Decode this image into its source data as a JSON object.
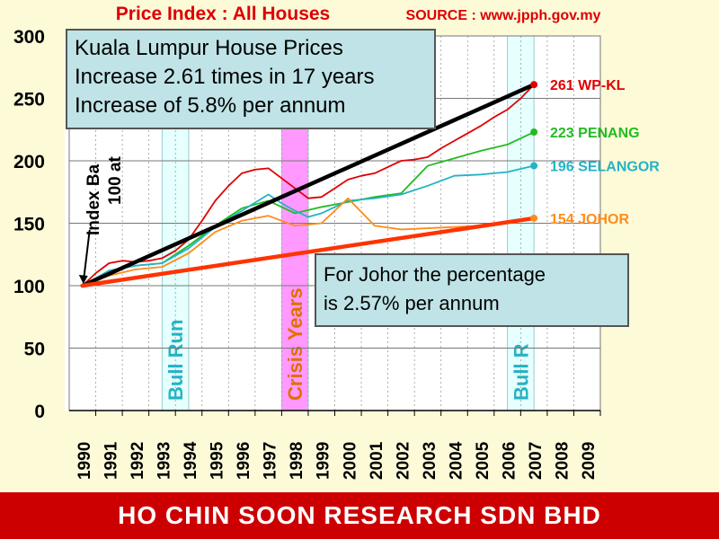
{
  "chart_data": {
    "type": "line",
    "title": "Price Index : All Houses",
    "source": "SOURCE : www.jpph.gov.my",
    "x_categories": [
      "1990",
      "1991",
      "1992",
      "1993",
      "1994",
      "1995",
      "1996",
      "1997",
      "1998",
      "1999",
      "2000",
      "2001",
      "2002",
      "2003",
      "2004",
      "2005",
      "2006",
      "2007",
      "2008",
      "2009"
    ],
    "ylim": [
      0,
      300
    ],
    "yticks": [
      0,
      50,
      100,
      150,
      200,
      250,
      300
    ],
    "grid": true,
    "series": [
      {
        "name": "WP-KL",
        "label": "261 WP-KL",
        "color": "#e00000",
        "x": [
          1990,
          1990.5,
          1991,
          1991.5,
          1992,
          1992.5,
          1993,
          1993.5,
          1994,
          1994.5,
          1995,
          1995.5,
          1996,
          1996.5,
          1997,
          1997.5,
          1998,
          1998.5,
          1999,
          1999.5,
          2000,
          2000.5,
          2001,
          2001.5,
          2002,
          2002.5,
          2003,
          2003.5,
          2004,
          2004.5,
          2005,
          2005.5,
          2006,
          2006.5,
          2007
        ],
        "y": [
          100,
          110,
          118,
          120,
          119,
          120,
          122,
          128,
          137,
          152,
          168,
          180,
          190,
          193,
          194,
          186,
          178,
          170,
          171,
          178,
          185,
          188,
          190,
          195,
          200,
          201,
          203,
          210,
          216,
          222,
          228,
          235,
          241,
          250,
          261
        ]
      },
      {
        "name": "PENANG",
        "label": "223 PENANG",
        "color": "#22bb22",
        "x": [
          1990,
          1991,
          1992,
          1993,
          1994,
          1995,
          1996,
          1997,
          1998,
          1999,
          2000,
          2001,
          2002,
          2003,
          2004,
          2005,
          2006,
          2007
        ],
        "y": [
          100,
          112,
          116,
          118,
          132,
          148,
          162,
          168,
          158,
          163,
          167,
          171,
          174,
          196,
          202,
          208,
          213,
          223
        ]
      },
      {
        "name": "SELANGOR",
        "label": "196 SELANGOR",
        "color": "#22b3c4",
        "x": [
          1990,
          1991,
          1992,
          1993,
          1994,
          1995,
          1996,
          1997,
          1997.5,
          1998,
          1998.5,
          1999,
          2000,
          2001,
          2002,
          2003,
          2004,
          2005,
          2006,
          2007
        ],
        "y": [
          100,
          112,
          116,
          118,
          130,
          147,
          160,
          173,
          166,
          160,
          155,
          158,
          168,
          170,
          173,
          180,
          188,
          189,
          191,
          196
        ]
      },
      {
        "name": "JOHOR",
        "label": "154 JOHOR",
        "color": "#ff8c1a",
        "x": [
          1990,
          1991,
          1992,
          1993,
          1994,
          1995,
          1996,
          1997,
          1998,
          1999,
          2000,
          2001,
          2002,
          2003,
          2004,
          2005,
          2006,
          2007
        ],
        "y": [
          100,
          108,
          113,
          115,
          126,
          143,
          152,
          156,
          148,
          150,
          170,
          148,
          145,
          146,
          147,
          148,
          151,
          154
        ]
      }
    ],
    "trend_lines": [
      {
        "name": "KL trend",
        "color": "#000000",
        "x": [
          1990,
          2007
        ],
        "y": [
          100,
          261
        ]
      },
      {
        "name": "Johor trend",
        "color": "#ff3300",
        "x": [
          1990,
          2007
        ],
        "y": [
          100,
          154
        ]
      }
    ],
    "bands": [
      {
        "label": "Bull Run",
        "x_from": 1993,
        "x_to": 1994,
        "fill": "#e6ffff",
        "text_color": "#22b3c4"
      },
      {
        "label": "Crisis Years",
        "x_from": 1997.5,
        "x_to": 1998.5,
        "fill": "#ff99ff",
        "text_color": "#e07000"
      },
      {
        "label": "Bull R",
        "x_from": 2006,
        "x_to": 2007,
        "fill": "#e6ffff",
        "text_color": "#22b3c4"
      }
    ],
    "base_annotation": {
      "line1": "Index Ba",
      "line2": "100 at"
    }
  },
  "callouts": {
    "kl": {
      "line1": "Kuala Lumpur House Prices",
      "line2": "Increase 2.61 times in 17 years",
      "line3": "Increase of 5.8% per annum"
    },
    "johor": {
      "line1": "For Johor the percentage",
      "line2": "is 2.57% per annum"
    }
  },
  "footer": {
    "text": "HO CHIN SOON RESEARCH SDN BHD"
  }
}
